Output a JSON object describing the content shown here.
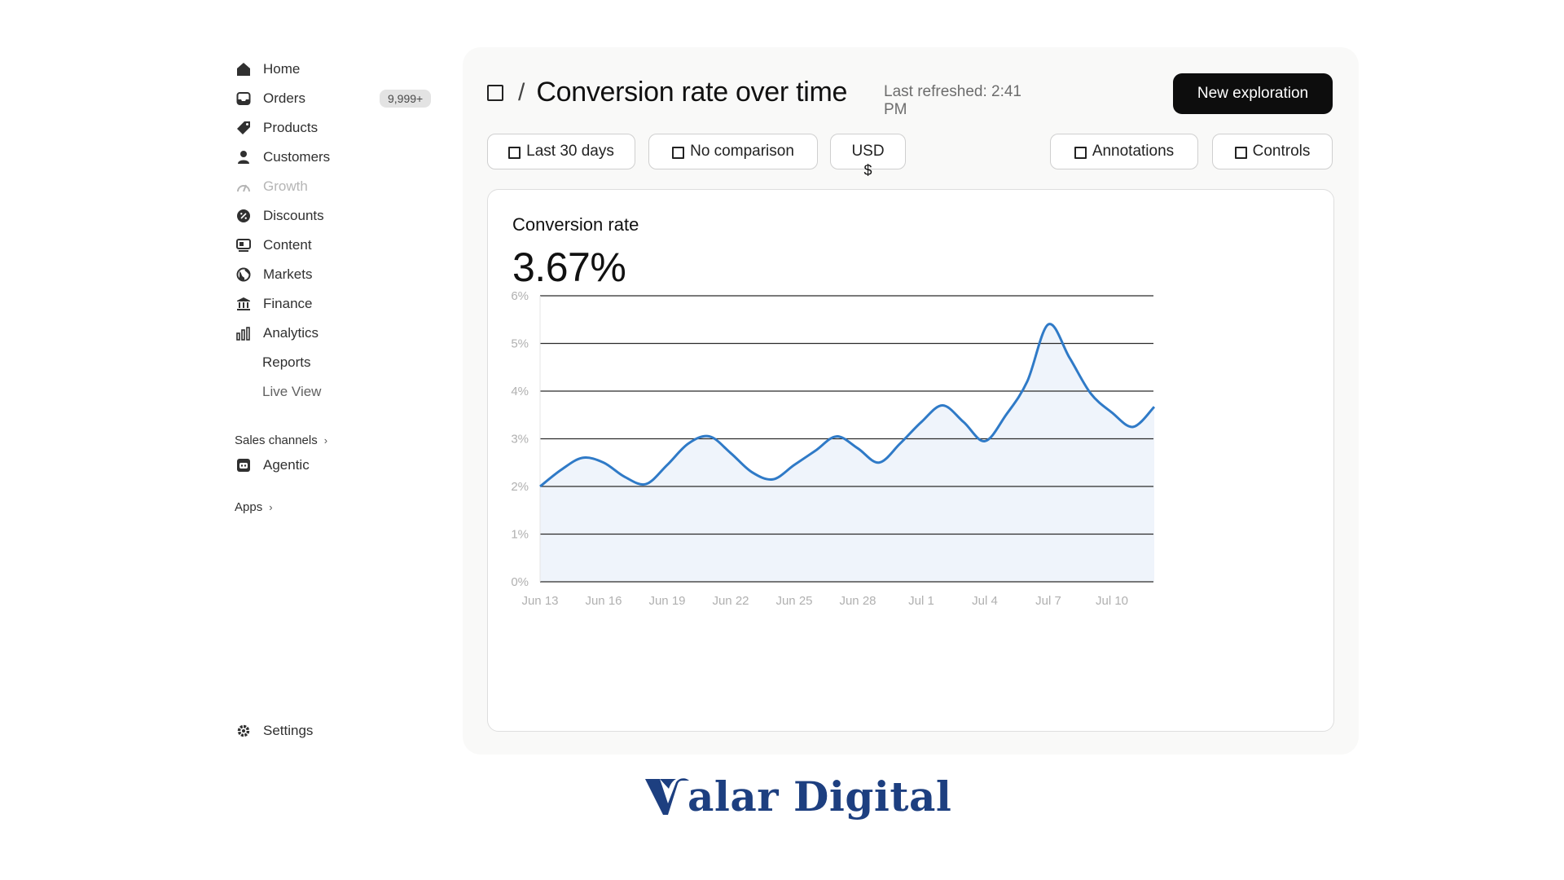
{
  "sidebar": {
    "items": [
      {
        "label": "Home",
        "icon": "home-icon"
      },
      {
        "label": "Orders",
        "icon": "inbox-icon",
        "badge": "9,999+"
      },
      {
        "label": "Products",
        "icon": "tag-icon"
      },
      {
        "label": "Customers",
        "icon": "person-icon"
      },
      {
        "label": "Growth",
        "icon": "gauge-icon",
        "muted": true
      },
      {
        "label": "Discounts",
        "icon": "discount-icon"
      },
      {
        "label": "Content",
        "icon": "content-icon"
      },
      {
        "label": "Markets",
        "icon": "globe-icon"
      },
      {
        "label": "Finance",
        "icon": "bank-icon"
      },
      {
        "label": "Analytics",
        "icon": "bar-chart-icon"
      }
    ],
    "analytics_sub": [
      {
        "label": "Reports"
      },
      {
        "label": "Live View"
      }
    ],
    "sales_channels": "Sales channels",
    "agentic": {
      "label": "Agentic",
      "icon": "robot-icon"
    },
    "apps": "Apps",
    "settings": {
      "label": "Settings",
      "icon": "gear-icon"
    }
  },
  "header": {
    "slash": "/",
    "title": "Conversion rate over time",
    "refreshed": "Last refreshed: 2:41 PM",
    "new_button": "New exploration"
  },
  "filters": {
    "date": "Last 30 days",
    "comparison": "No comparison",
    "currency": "USD",
    "currency_symbol": "$",
    "annotations": "Annotations",
    "controls": "Controls"
  },
  "metric": {
    "label": "Conversion rate",
    "value": "3.67%"
  },
  "chart_data": {
    "type": "area",
    "y_ticks": [
      "0%",
      "1%",
      "2%",
      "3%",
      "4%",
      "5%",
      "6%"
    ],
    "ylim": [
      0,
      6
    ],
    "x_tick_labels": [
      "Jun 13",
      "Jun 16",
      "Jun 19",
      "Jun 22",
      "Jun 25",
      "Jun 28",
      "Jul 1",
      "Jul 4",
      "Jul 7",
      "Jul 10"
    ],
    "x": [
      "Jun 13",
      "Jun 14",
      "Jun 15",
      "Jun 16",
      "Jun 17",
      "Jun 18",
      "Jun 19",
      "Jun 20",
      "Jun 21",
      "Jun 22",
      "Jun 23",
      "Jun 24",
      "Jun 25",
      "Jun 26",
      "Jun 27",
      "Jun 28",
      "Jun 29",
      "Jun 30",
      "Jul 1",
      "Jul 2",
      "Jul 3",
      "Jul 4",
      "Jul 5",
      "Jul 6",
      "Jul 7",
      "Jul 8",
      "Jul 9",
      "Jul 10",
      "Jul 11",
      "Jul 12"
    ],
    "values": [
      2.0,
      2.35,
      2.6,
      2.5,
      2.2,
      2.05,
      2.45,
      2.9,
      3.05,
      2.7,
      2.3,
      2.15,
      2.45,
      2.75,
      3.05,
      2.8,
      2.5,
      2.9,
      3.35,
      3.7,
      3.35,
      2.95,
      3.5,
      4.2,
      5.4,
      4.7,
      3.95,
      3.55,
      3.25,
      3.67
    ],
    "grid": true,
    "line_color": "#2f7ac7",
    "fill_color": "#eef3fb"
  },
  "logo": {
    "text": "alar Digital",
    "brand_color": "#1d3f80"
  }
}
